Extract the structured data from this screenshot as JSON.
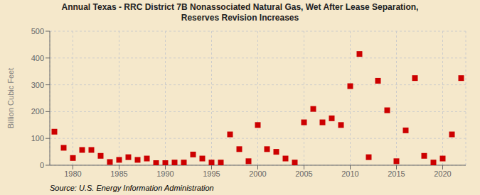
{
  "chart_data": {
    "type": "scatter",
    "title": "Annual Texas - RRC District 7B Nonassociated Natural Gas, Wet After Lease Separation,\nReserves Revision Increases",
    "ylabel": "Billion Cubic Feet",
    "annotation": "Source: U.S. Energy Information Administration",
    "x": [
      1978,
      1979,
      1980,
      1981,
      1982,
      1983,
      1984,
      1985,
      1986,
      1987,
      1988,
      1989,
      1990,
      1991,
      1992,
      1993,
      1994,
      1995,
      1996,
      1997,
      1998,
      1999,
      2000,
      2001,
      2002,
      2003,
      2004,
      2005,
      2006,
      2007,
      2008,
      2009,
      2010,
      2011,
      2012,
      2013,
      2014,
      2015,
      2016,
      2017,
      2018,
      2019,
      2020,
      2021,
      2022
    ],
    "values": [
      125,
      65,
      27,
      57,
      57,
      35,
      12,
      20,
      30,
      20,
      25,
      8,
      8,
      10,
      10,
      40,
      25,
      10,
      10,
      115,
      60,
      15,
      150,
      60,
      50,
      25,
      10,
      160,
      210,
      160,
      175,
      150,
      295,
      415,
      30,
      315,
      205,
      15,
      130,
      325,
      35,
      10,
      25,
      115,
      325
    ],
    "color": "#cc0000",
    "marker": "square",
    "xlim": [
      1977.5,
      2022.5
    ],
    "ylim": [
      0,
      500
    ],
    "xticks": [
      1980,
      1985,
      1990,
      1995,
      2000,
      2005,
      2010,
      2015,
      2020
    ],
    "yticks": [
      0,
      100,
      200,
      300,
      400,
      500
    ],
    "grid": true
  }
}
